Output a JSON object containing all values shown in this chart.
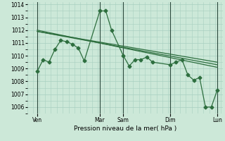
{
  "xlabel": "Pression niveau de la mer( hPa )",
  "background_color": "#cce8d8",
  "grid_color": "#a8cfc0",
  "line_color": "#2d6e3e",
  "vline_color": "#2d4a3e",
  "ylim": [
    1005.5,
    1014.2
  ],
  "xlim": [
    0,
    100
  ],
  "ytick_values": [
    1006,
    1007,
    1008,
    1009,
    1010,
    1011,
    1012,
    1013,
    1014
  ],
  "xtick_positions": [
    5,
    37,
    49,
    73,
    97
  ],
  "xtick_labels": [
    "Ven",
    "Mar",
    "Sam",
    "Dim",
    "Lun"
  ],
  "vline_positions": [
    5,
    37,
    49,
    73,
    97
  ],
  "zigzag_x": [
    5,
    8,
    11,
    14,
    17,
    20,
    23,
    26,
    29,
    37,
    40,
    43,
    49,
    52,
    55,
    58,
    61,
    64,
    73,
    76,
    79,
    82,
    85,
    88,
    91,
    94,
    97
  ],
  "zigzag_y": [
    1008.8,
    1009.7,
    1009.5,
    1010.5,
    1011.2,
    1011.1,
    1010.9,
    1010.6,
    1009.6,
    1013.5,
    1013.5,
    1012.0,
    1010.0,
    1009.2,
    1009.7,
    1009.7,
    1009.9,
    1009.5,
    1009.3,
    1009.5,
    1009.7,
    1008.5,
    1008.1,
    1008.3,
    1006.0,
    1006.0,
    1007.3
  ],
  "trend1_x": [
    5,
    97
  ],
  "trend1_y": [
    1011.9,
    1009.5
  ],
  "trend2_x": [
    5,
    97
  ],
  "trend2_y": [
    1011.9,
    1009.3
  ],
  "trend3_x": [
    5,
    97
  ],
  "trend3_y": [
    1012.0,
    1009.1
  ]
}
